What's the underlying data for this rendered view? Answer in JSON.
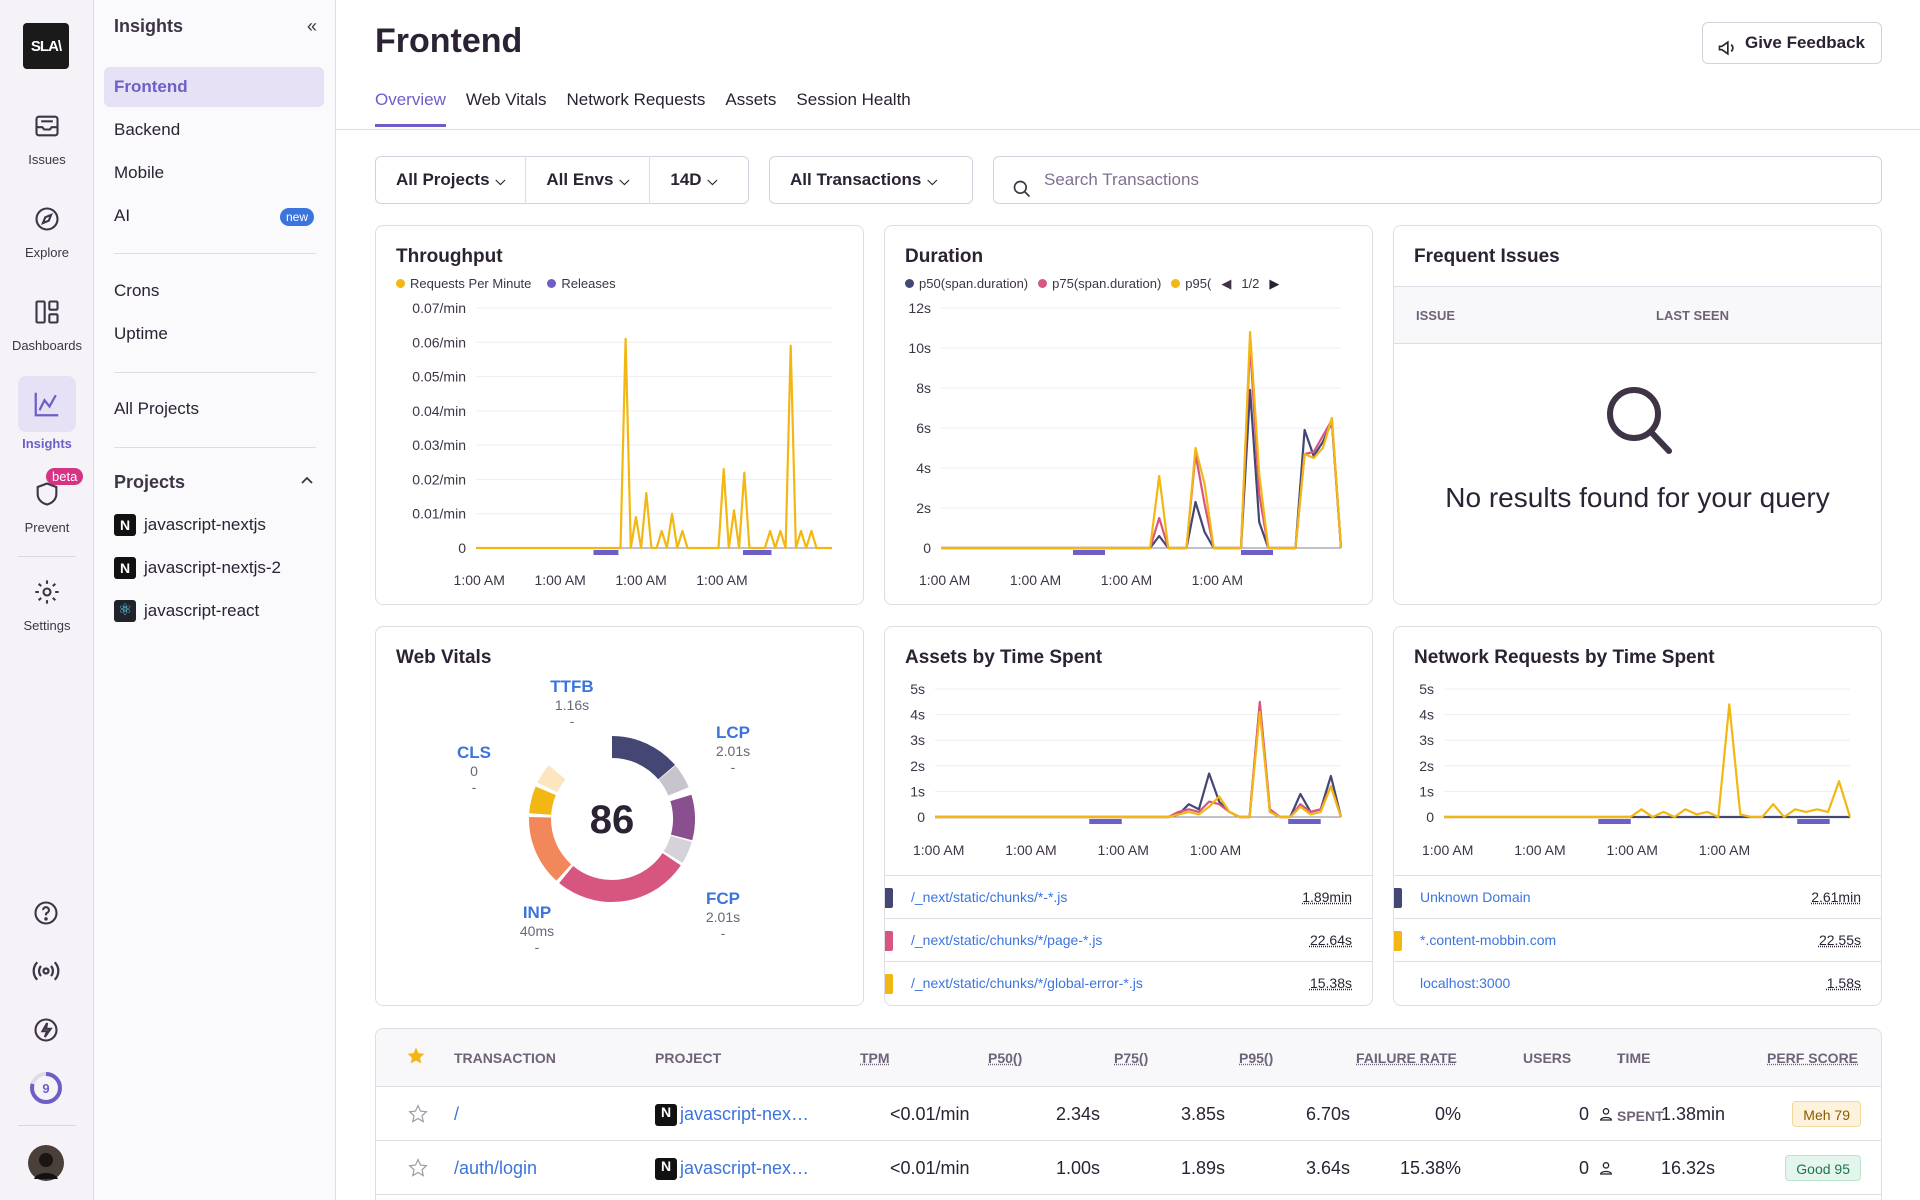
{
  "rail": {
    "logo": "SLA\\",
    "items": [
      {
        "label": "Issues",
        "icon": "inbox-icon"
      },
      {
        "label": "Explore",
        "icon": "compass-icon"
      },
      {
        "label": "Dashboards",
        "icon": "dashboard-icon"
      },
      {
        "label": "Insights",
        "icon": "chart-icon"
      },
      {
        "label": "Prevent",
        "icon": "shield-icon",
        "badge": "beta"
      },
      {
        "label": "Settings",
        "icon": "gear-icon"
      }
    ],
    "usage_count": "9"
  },
  "subnav": {
    "title": "Insights",
    "items": [
      "Frontend",
      "Backend",
      "Mobile",
      "AI"
    ],
    "ai_badge": "new",
    "items2": [
      "Crons",
      "Uptime"
    ],
    "all_projects": "All Projects",
    "projects_heading": "Projects",
    "projects": [
      "javascript-nextjs",
      "javascript-nextjs-2",
      "javascript-react"
    ]
  },
  "header": {
    "title": "Frontend",
    "feedback": "Give Feedback",
    "tabs": [
      "Overview",
      "Web Vitals",
      "Network Requests",
      "Assets",
      "Session Health"
    ]
  },
  "filters": {
    "projects": "All Projects",
    "envs": "All Envs",
    "period": "14D",
    "transactions": "All Transactions",
    "search_placeholder": "Search Transactions"
  },
  "cards": {
    "throughput": {
      "title": "Throughput",
      "legend": [
        "Requests Per Minute",
        "Releases"
      ],
      "yticks": [
        "0.07/min",
        "0.06/min",
        "0.05/min",
        "0.04/min",
        "0.03/min",
        "0.02/min",
        "0.01/min",
        "0"
      ],
      "xticks": [
        "1:00 AM",
        "1:00 AM",
        "1:00 AM",
        "1:00 AM"
      ]
    },
    "duration": {
      "title": "Duration",
      "legend": [
        "p50(span.duration)",
        "p75(span.duration)",
        "p95("
      ],
      "pager": "1/2",
      "yticks": [
        "12s",
        "10s",
        "8s",
        "6s",
        "4s",
        "2s",
        "0"
      ],
      "xticks": [
        "1:00 AM",
        "1:00 AM",
        "1:00 AM",
        "1:00 AM"
      ]
    },
    "issues": {
      "title": "Frequent Issues",
      "col_issue": "ISSUE",
      "col_last_seen": "LAST SEEN",
      "empty": "No results found for your query"
    },
    "vitals": {
      "title": "Web Vitals",
      "score": "86",
      "metrics": [
        {
          "name": "TTFB",
          "value": "1.16s",
          "dash": "-"
        },
        {
          "name": "LCP",
          "value": "2.01s",
          "dash": "-"
        },
        {
          "name": "CLS",
          "value": "0",
          "dash": "-"
        },
        {
          "name": "FCP",
          "value": "2.01s",
          "dash": "-"
        },
        {
          "name": "INP",
          "value": "40ms",
          "dash": "-"
        }
      ]
    },
    "assets": {
      "title": "Assets by Time Spent",
      "yticks": [
        "5s",
        "4s",
        "3s",
        "2s",
        "1s",
        "0"
      ],
      "xticks": [
        "1:00 AM",
        "1:00 AM",
        "1:00 AM",
        "1:00 AM"
      ],
      "rows": [
        {
          "label": "/_next/static/chunks/*-*.js",
          "value": "1.89min",
          "color": "#444674"
        },
        {
          "label": "/_next/static/chunks/*/page-*.js",
          "value": "22.64s",
          "color": "#d6567f"
        },
        {
          "label": "/_next/static/chunks/*/global-error-*.js",
          "value": "15.38s",
          "color": "#f2b712"
        }
      ]
    },
    "network": {
      "title": "Network Requests by Time Spent",
      "yticks": [
        "5s",
        "4s",
        "3s",
        "2s",
        "1s",
        "0"
      ],
      "xticks": [
        "1:00 AM",
        "1:00 AM",
        "1:00 AM",
        "1:00 AM"
      ],
      "rows": [
        {
          "label": "Unknown Domain",
          "value": "2.61min",
          "color": "#444674"
        },
        {
          "label": "*.content-mobbin.com",
          "value": "22.55s",
          "color": "#f2b712"
        },
        {
          "label": "localhost:3000",
          "value": "1.58s",
          "color": "#ffffff"
        }
      ]
    }
  },
  "table": {
    "headers": [
      "TRANSACTION",
      "PROJECT",
      "TPM",
      "P50()",
      "P75()",
      "P95()",
      "FAILURE RATE",
      "USERS",
      "TIME SPENT",
      "PERF SCORE"
    ],
    "rows": [
      {
        "transaction": "/",
        "project": "javascript-nex…",
        "tpm": "<0.01/min",
        "p50": "2.34s",
        "p75": "3.85s",
        "p95": "6.70s",
        "failure": "0%",
        "users": "0",
        "time": "1.38min",
        "score": "Meh 79",
        "score_type": "meh"
      },
      {
        "transaction": "/auth/login",
        "project": "javascript-nex…",
        "tpm": "<0.01/min",
        "p50": "1.00s",
        "p75": "1.89s",
        "p95": "3.64s",
        "failure": "15.38%",
        "users": "0",
        "time": "16.32s",
        "score": "Good 95",
        "score_type": "good"
      }
    ]
  },
  "chart_data": [
    {
      "type": "line",
      "title": "Throughput",
      "series": [
        {
          "name": "Requests Per Minute",
          "values": [
            0,
            0,
            0,
            0,
            0,
            0,
            0,
            0,
            0,
            0,
            0,
            0,
            0,
            0,
            0,
            0,
            0,
            0,
            0,
            0,
            0,
            0,
            0,
            0,
            0,
            0,
            0,
            0,
            0,
            0.061,
            0,
            0.009,
            0,
            0.016,
            0,
            0,
            0.005,
            0,
            0.01,
            0,
            0.005,
            0,
            0,
            0,
            0,
            0,
            0,
            0,
            0.023,
            0,
            0.011,
            0,
            0.022,
            0,
            0,
            0,
            0,
            0.005,
            0,
            0.005,
            0,
            0.059,
            0,
            0.005,
            0,
            0.005,
            0,
            0,
            0,
            0
          ]
        }
      ],
      "ylim": [
        0,
        0.07
      ]
    },
    {
      "type": "line",
      "title": "Duration",
      "series": [
        {
          "name": "p50(span.duration)",
          "values": [
            0,
            0,
            0,
            0,
            0,
            0,
            0,
            0,
            0,
            0,
            0,
            0,
            0,
            0,
            0,
            0,
            0,
            0,
            0,
            0,
            0,
            0,
            0,
            0,
            0.6,
            0,
            0,
            0,
            2.3,
            0.8,
            0,
            0,
            0,
            0,
            7.9,
            1.3,
            0,
            0,
            0,
            0,
            5.9,
            4.6,
            5.3,
            6.3,
            0
          ]
        },
        {
          "name": "p75(span.duration)",
          "values": [
            0,
            0,
            0,
            0,
            0,
            0,
            0,
            0,
            0,
            0,
            0,
            0,
            0,
            0,
            0,
            0,
            0,
            0,
            0,
            0,
            0,
            0,
            0,
            0,
            1.5,
            0,
            0,
            0,
            4.7,
            2.2,
            0,
            0,
            0,
            0,
            10.2,
            2.7,
            0,
            0,
            0,
            0,
            4.7,
            4.8,
            5.6,
            6.4,
            0
          ]
        },
        {
          "name": "p95(",
          "values": [
            0,
            0,
            0,
            0,
            0,
            0,
            0,
            0,
            0,
            0,
            0,
            0,
            0,
            0,
            0,
            0,
            0,
            0,
            0,
            0,
            0,
            0,
            0,
            0,
            3.6,
            0,
            0,
            0,
            5.0,
            3.2,
            0,
            0,
            0,
            0,
            10.8,
            3.7,
            0,
            0,
            0,
            0,
            4.7,
            4.5,
            5.0,
            6.5,
            0
          ]
        }
      ],
      "ylim": [
        0,
        12
      ]
    },
    {
      "type": "line",
      "title": "Assets by Time Spent",
      "series": [
        {
          "name": "/_next/static/chunks/*-*.js",
          "values": [
            0,
            0,
            0,
            0,
            0,
            0,
            0,
            0,
            0,
            0,
            0,
            0,
            0,
            0,
            0,
            0,
            0,
            0,
            0,
            0,
            0,
            0,
            0,
            0,
            0.1,
            0.5,
            0.3,
            1.7,
            0.6,
            0.2,
            0,
            0,
            4.4,
            0.2,
            0,
            0,
            0.9,
            0.2,
            0.3,
            1.6,
            0
          ]
        },
        {
          "name": "/_next/static/chunks/*/page-*.js",
          "values": [
            0,
            0,
            0,
            0,
            0,
            0,
            0,
            0,
            0,
            0,
            0,
            0,
            0,
            0,
            0,
            0,
            0,
            0,
            0,
            0,
            0,
            0,
            0,
            0,
            0.2,
            0.3,
            0.2,
            0.6,
            0.5,
            0.2,
            0,
            0,
            4.5,
            0.3,
            0,
            0,
            0.5,
            0.2,
            0.3,
            1.2,
            0
          ]
        },
        {
          "name": "/_next/static/chunks/*/global-error-*.js",
          "values": [
            0,
            0,
            0,
            0,
            0,
            0,
            0,
            0,
            0,
            0,
            0,
            0,
            0,
            0,
            0,
            0,
            0,
            0,
            0,
            0,
            0,
            0,
            0,
            0,
            0.1,
            0.2,
            0.1,
            0.4,
            0.8,
            0.2,
            0,
            0,
            4.1,
            0.2,
            0,
            0,
            0.4,
            0.1,
            0.2,
            1.2,
            0
          ]
        }
      ],
      "ylim": [
        0,
        5
      ]
    },
    {
      "type": "line",
      "title": "Network Requests by Time Spent",
      "series": [
        {
          "name": "Unknown Domain",
          "values": [
            0,
            0,
            0,
            0,
            0,
            0,
            0,
            0,
            0,
            0,
            0,
            0,
            0,
            0,
            0,
            0,
            0,
            0,
            0,
            0,
            0,
            0,
            0,
            0,
            0,
            0,
            0,
            0,
            0,
            0,
            0,
            0,
            0,
            0,
            0,
            0,
            0,
            0,
            0,
            0
          ]
        },
        {
          "name": "*.content-mobbin.com",
          "values": [
            0,
            0,
            0,
            0,
            0,
            0,
            0,
            0,
            0,
            0,
            0,
            0,
            0,
            0,
            0,
            0,
            0,
            0,
            0.3,
            0,
            0.2,
            0,
            0.3,
            0.1,
            0.2,
            0,
            4.4,
            0.1,
            0,
            0,
            0.5,
            0,
            0.3,
            0.2,
            0.3,
            0.2,
            1.4,
            0
          ]
        }
      ],
      "ylim": [
        0,
        5
      ]
    }
  ]
}
